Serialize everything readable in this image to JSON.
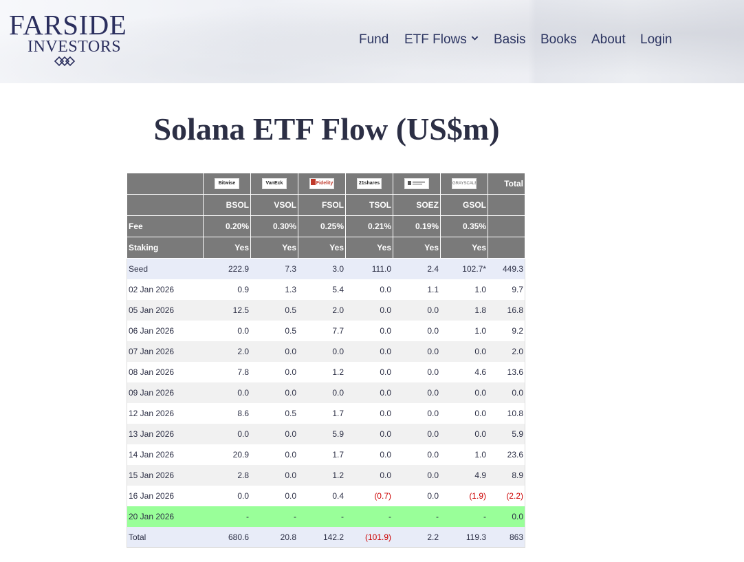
{
  "brand": {
    "line1": "FARSIDE",
    "line2": "INVESTORS"
  },
  "nav": {
    "items": [
      {
        "label": "Fund"
      },
      {
        "label": "ETF Flows"
      },
      {
        "label": "Basis"
      },
      {
        "label": "Books"
      },
      {
        "label": "About"
      },
      {
        "label": "Login"
      }
    ]
  },
  "page": {
    "title": "Solana ETF Flow (US$m)"
  },
  "table": {
    "issuer_logos": [
      "Bitwise",
      "VanEck",
      "Fidelity",
      "21shares",
      "",
      "GRAYSCALE"
    ],
    "total_header": "Total",
    "tickers": [
      "BSOL",
      "VSOL",
      "FSOL",
      "TSOL",
      "SOEZ",
      "GSOL"
    ],
    "fee_label": "Fee",
    "fees": [
      "0.20%",
      "0.30%",
      "0.25%",
      "0.21%",
      "0.19%",
      "0.35%"
    ],
    "staking_label": "Staking",
    "staking": [
      "Yes",
      "Yes",
      "Yes",
      "Yes",
      "Yes",
      "Yes"
    ],
    "rows": [
      {
        "date": "Seed",
        "values": [
          "222.9",
          "7.3",
          "3.0",
          "111.0",
          "2.4",
          "102.7*",
          "449.3"
        ],
        "style": "blue"
      },
      {
        "date": "02 Jan 2026",
        "values": [
          "0.9",
          "1.3",
          "5.4",
          "0.0",
          "1.1",
          "1.0",
          "9.7"
        ],
        "style": "white"
      },
      {
        "date": "05 Jan 2026",
        "values": [
          "12.5",
          "0.5",
          "2.0",
          "0.0",
          "0.0",
          "1.8",
          "16.8"
        ],
        "style": "grey"
      },
      {
        "date": "06 Jan 2026",
        "values": [
          "0.0",
          "0.5",
          "7.7",
          "0.0",
          "0.0",
          "1.0",
          "9.2"
        ],
        "style": "white"
      },
      {
        "date": "07 Jan 2026",
        "values": [
          "2.0",
          "0.0",
          "0.0",
          "0.0",
          "0.0",
          "0.0",
          "2.0"
        ],
        "style": "grey"
      },
      {
        "date": "08 Jan 2026",
        "values": [
          "7.8",
          "0.0",
          "1.2",
          "0.0",
          "0.0",
          "4.6",
          "13.6"
        ],
        "style": "white"
      },
      {
        "date": "09 Jan 2026",
        "values": [
          "0.0",
          "0.0",
          "0.0",
          "0.0",
          "0.0",
          "0.0",
          "0.0"
        ],
        "style": "grey"
      },
      {
        "date": "12 Jan 2026",
        "values": [
          "8.6",
          "0.5",
          "1.7",
          "0.0",
          "0.0",
          "0.0",
          "10.8"
        ],
        "style": "white"
      },
      {
        "date": "13 Jan 2026",
        "values": [
          "0.0",
          "0.0",
          "5.9",
          "0.0",
          "0.0",
          "0.0",
          "5.9"
        ],
        "style": "grey"
      },
      {
        "date": "14 Jan 2026",
        "values": [
          "20.9",
          "0.0",
          "1.7",
          "0.0",
          "0.0",
          "1.0",
          "23.6"
        ],
        "style": "white"
      },
      {
        "date": "15 Jan 2026",
        "values": [
          "2.8",
          "0.0",
          "1.2",
          "0.0",
          "0.0",
          "4.9",
          "8.9"
        ],
        "style": "grey"
      },
      {
        "date": "16 Jan 2026",
        "values": [
          "0.0",
          "0.0",
          "0.4",
          "(0.7)",
          "0.0",
          "(1.9)",
          "(2.2)"
        ],
        "style": "white"
      },
      {
        "date": "20 Jan 2026",
        "values": [
          "-",
          "-",
          "-",
          "-",
          "-",
          "-",
          "0.0"
        ],
        "style": "green"
      },
      {
        "date": "Total",
        "values": [
          "680.6",
          "20.8",
          "142.2",
          "(101.9)",
          "2.2",
          "119.3",
          "863"
        ],
        "style": "total"
      }
    ]
  },
  "colors": {
    "header_bg": "#7a7a7a",
    "negative": "#cc0000",
    "latest_row": "#99ff99",
    "seed_total_row": "#e8ecf8"
  }
}
